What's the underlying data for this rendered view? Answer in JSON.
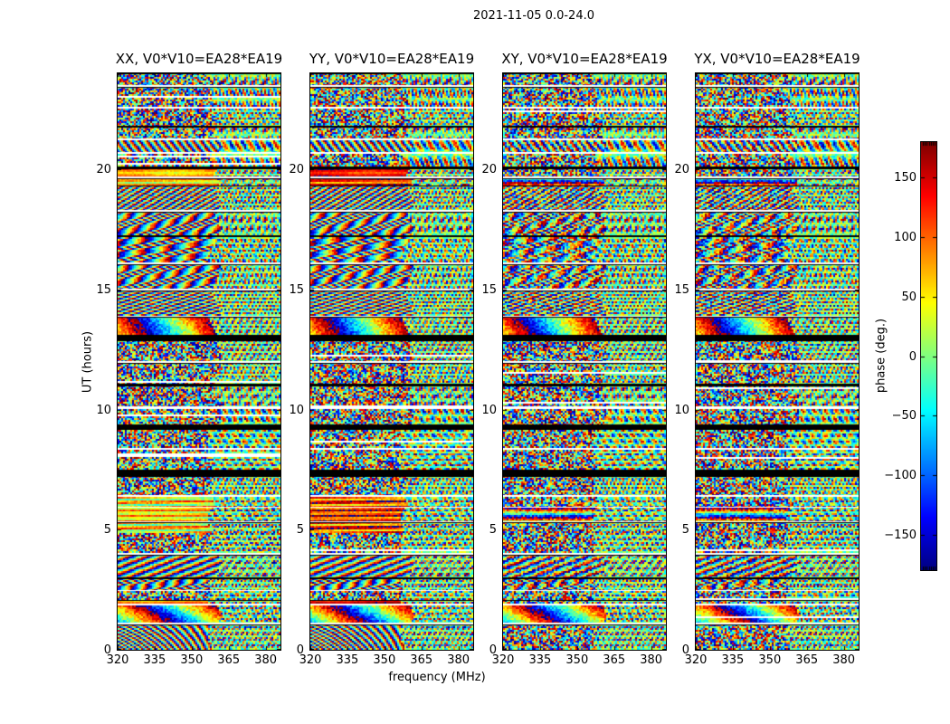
{
  "chart_data": {
    "type": "heatmap",
    "title": "2021-11-05 0.0-24.0",
    "panels": [
      {
        "label": "XX",
        "title": "XX, V0*V10=EA28*EA19",
        "warm_phase_deg": 75
      },
      {
        "label": "YY",
        "title": "YY, V0*V10=EA28*EA19",
        "warm_phase_deg": 138
      },
      {
        "label": "XY",
        "title": "XY, V0*V10=EA28*EA19",
        "warm_phase_deg": null
      },
      {
        "label": "YX",
        "title": "YX, V0*V10=EA28*EA19",
        "warm_phase_deg": null
      }
    ],
    "xaxis": {
      "label": "frequency (MHz)",
      "ticks": [
        320,
        335,
        350,
        365,
        380
      ],
      "range": [
        320,
        386
      ]
    },
    "yaxis": {
      "label": "UT (hours)",
      "ticks": [
        0,
        5,
        10,
        15,
        20
      ],
      "range": [
        0,
        24
      ]
    },
    "colorbar": {
      "label": "phase (deg.)",
      "ticks": [
        150,
        100,
        50,
        0,
        -50,
        -100,
        -150
      ],
      "tick_labels": [
        "150",
        "100",
        "50",
        "0",
        "−50",
        "−100",
        "−150"
      ],
      "range": [
        -180,
        180
      ],
      "colormap": "jet"
    },
    "texture": {
      "seed": 20211105,
      "freq_split_frac": 0.585,
      "segments": [
        [
          24.0,
          23.5,
          "n"
        ],
        [
          23.5,
          23.42,
          "g"
        ],
        [
          23.42,
          22.62,
          "n"
        ],
        [
          22.62,
          22.52,
          "g"
        ],
        [
          22.52,
          21.82,
          "n"
        ],
        [
          21.82,
          21.76,
          "l"
        ],
        [
          21.76,
          21.3,
          "n"
        ],
        [
          21.3,
          21.22,
          "g"
        ],
        [
          21.22,
          20.72,
          "f"
        ],
        [
          20.72,
          20.64,
          "g"
        ],
        [
          20.64,
          20.12,
          "n"
        ],
        [
          20.12,
          20.06,
          "l"
        ],
        [
          20.06,
          19.72,
          "s"
        ],
        [
          19.72,
          19.64,
          "g"
        ],
        [
          19.64,
          19.34,
          "s2"
        ],
        [
          19.34,
          18.32,
          "f"
        ],
        [
          18.32,
          18.24,
          "g"
        ],
        [
          18.24,
          17.24,
          "c"
        ],
        [
          17.24,
          17.18,
          "l"
        ],
        [
          17.18,
          16.12,
          "c"
        ],
        [
          16.12,
          16.04,
          "g"
        ],
        [
          16.04,
          15.02,
          "c"
        ],
        [
          15.02,
          14.94,
          "g"
        ],
        [
          14.94,
          13.92,
          "f"
        ],
        [
          13.92,
          13.86,
          "g"
        ],
        [
          13.86,
          13.12,
          "h"
        ],
        [
          13.12,
          12.88,
          "b"
        ],
        [
          12.88,
          12.02,
          "n"
        ],
        [
          12.02,
          11.94,
          "g"
        ],
        [
          11.94,
          11.06,
          "n"
        ],
        [
          11.06,
          11.0,
          "l"
        ],
        [
          11.0,
          10.12,
          "n"
        ],
        [
          10.12,
          10.04,
          "g"
        ],
        [
          10.04,
          9.38,
          "n"
        ],
        [
          9.38,
          9.16,
          "b"
        ],
        [
          9.16,
          8.42,
          "n"
        ],
        [
          8.42,
          8.34,
          "g"
        ],
        [
          8.34,
          7.48,
          "n"
        ],
        [
          7.48,
          7.22,
          "b"
        ],
        [
          7.22,
          6.46,
          "n"
        ],
        [
          6.46,
          6.38,
          "g"
        ],
        [
          6.38,
          5.96,
          "w"
        ],
        [
          5.96,
          5.9,
          "g"
        ],
        [
          5.9,
          5.36,
          "s2"
        ],
        [
          5.36,
          5.3,
          "g"
        ],
        [
          5.3,
          4.86,
          "w"
        ],
        [
          4.86,
          4.02,
          "n"
        ],
        [
          4.02,
          3.96,
          "g"
        ],
        [
          3.96,
          3.02,
          "f"
        ],
        [
          3.02,
          2.96,
          "l"
        ],
        [
          2.96,
          2.5,
          "c"
        ],
        [
          2.5,
          2.44,
          "g"
        ],
        [
          2.44,
          2.06,
          "n"
        ],
        [
          2.06,
          1.92,
          "s"
        ],
        [
          1.92,
          1.86,
          "g"
        ],
        [
          1.86,
          1.12,
          "h"
        ],
        [
          1.12,
          1.06,
          "g"
        ],
        [
          1.06,
          0.0,
          "ff"
        ]
      ]
    }
  }
}
